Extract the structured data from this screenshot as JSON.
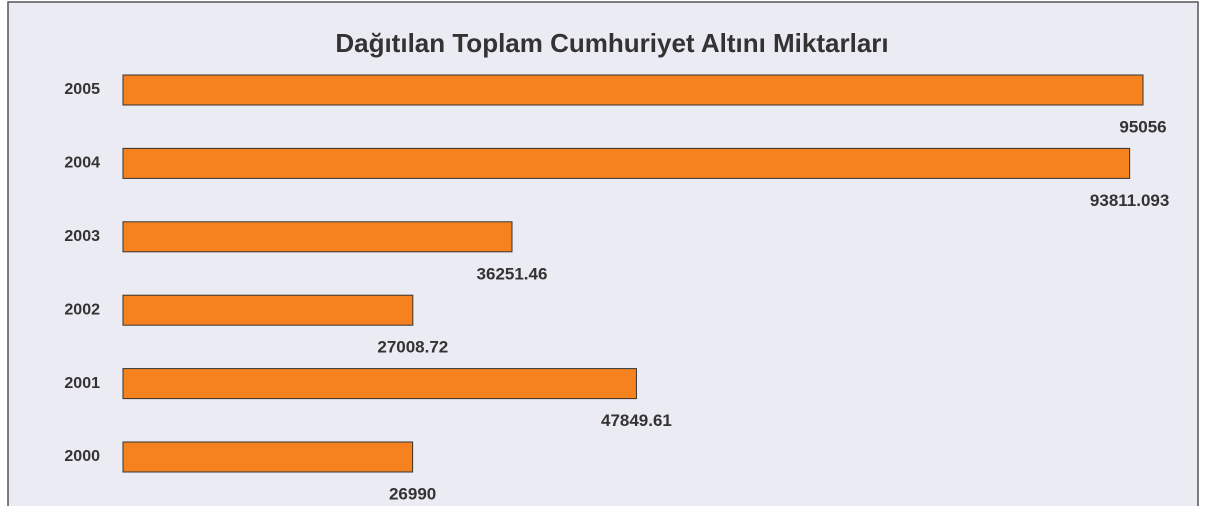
{
  "chart_data": {
    "type": "bar",
    "orientation": "horizontal",
    "title": "Dağıtılan Toplam Cumhuriyet Altını Miktarları",
    "categories": [
      "2005",
      "2004",
      "2003",
      "2002",
      "2001",
      "2000"
    ],
    "values": [
      95056,
      93811.093,
      36251.46,
      27008.72,
      47849.61,
      26990
    ],
    "color": "#f5821f"
  }
}
